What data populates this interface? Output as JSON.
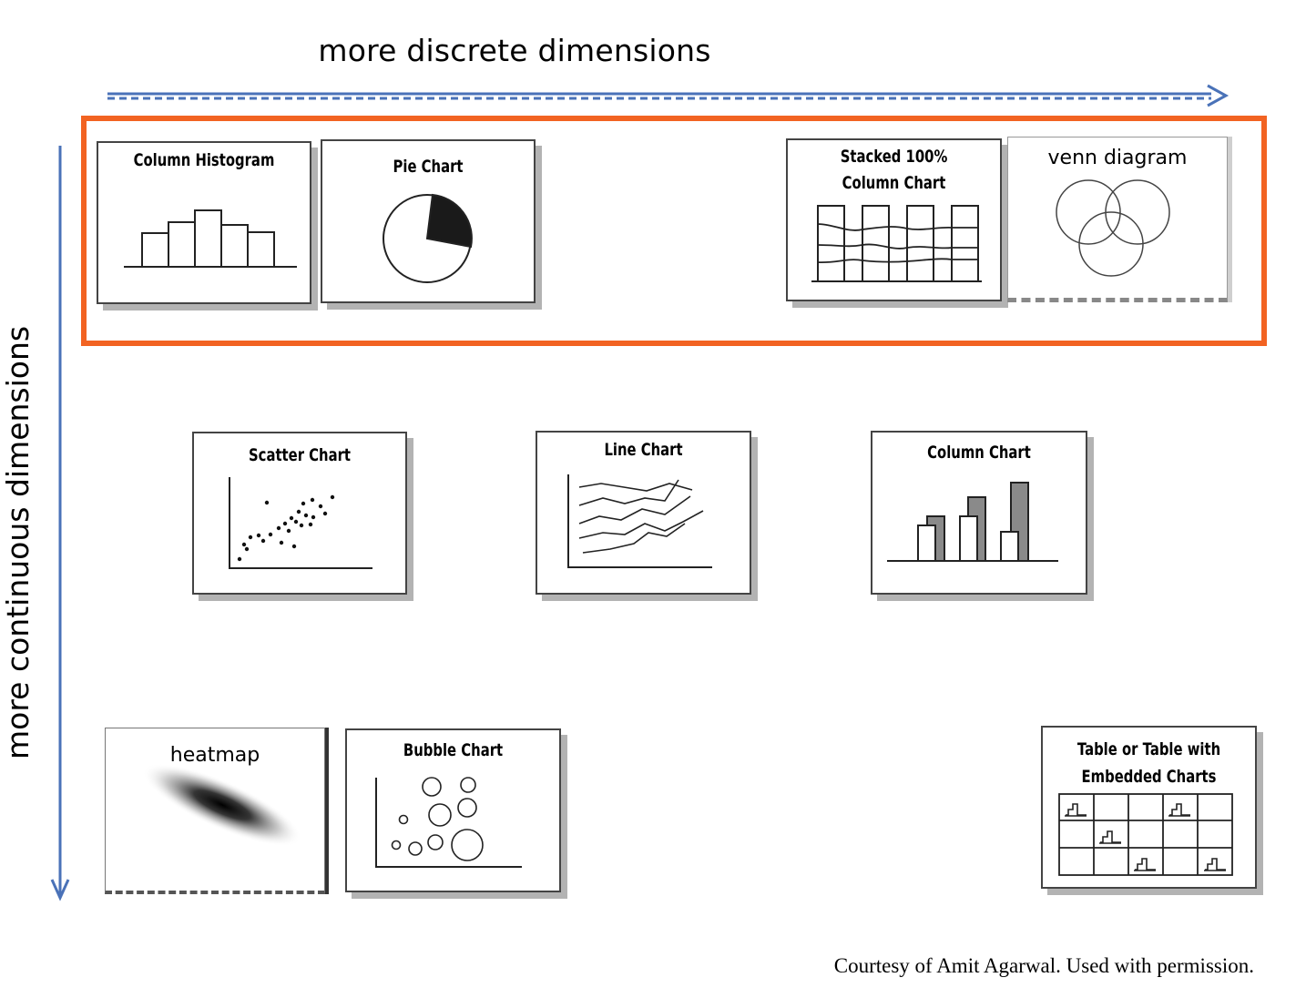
{
  "axes": {
    "horizontal_label": "more discrete dimensions",
    "vertical_label": "more continuous dimensions",
    "arrow_color": "#4a72b8"
  },
  "highlight_color": "#f26322",
  "cards": {
    "column_histogram": {
      "title": "Column Histogram"
    },
    "pie_chart": {
      "title": "Pie Chart"
    },
    "stacked_column": {
      "title_line1": "Stacked 100%",
      "title_line2": "Column Chart"
    },
    "venn": {
      "title": "venn diagram"
    },
    "scatter": {
      "title": "Scatter Chart"
    },
    "line": {
      "title": "Line Chart"
    },
    "column": {
      "title": "Column Chart"
    },
    "heatmap": {
      "title": "heatmap"
    },
    "bubble": {
      "title": "Bubble Chart"
    },
    "table": {
      "title_line1": "Table or Table with",
      "title_line2": "Embedded Charts"
    }
  },
  "credit": "Courtesy of  Amit Agarwal. Used with permission."
}
